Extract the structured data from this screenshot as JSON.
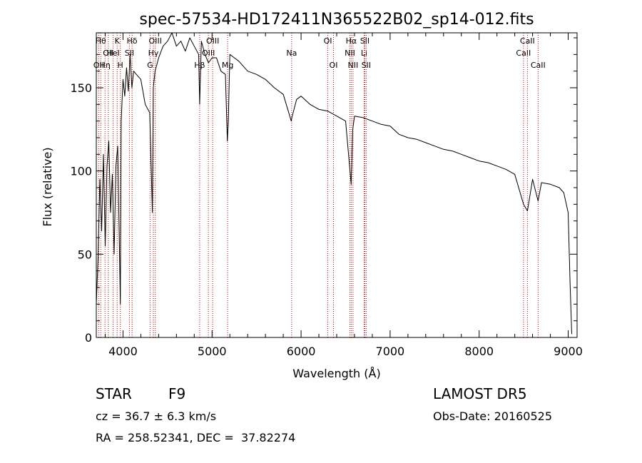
{
  "chart_data": {
    "type": "line",
    "title": "spec-57534-HD172411N365522B02_sp14-012.fits",
    "xlabel": "Wavelength (Å)",
    "ylabel": "Flux (relative)",
    "xlim": [
      3700,
      9100
    ],
    "ylim": [
      0,
      183
    ],
    "x_ticks": [
      4000,
      5000,
      6000,
      7000,
      8000,
      9000
    ],
    "y_ticks": [
      0,
      50,
      100,
      150
    ],
    "x_tick_labels": [
      "4000",
      "5000",
      "6000",
      "7000",
      "8000",
      "9000"
    ],
    "y_tick_labels": [
      "0",
      "50",
      "100",
      "150"
    ],
    "grid": false,
    "series": [
      {
        "x": [
          3700,
          3720,
          3740,
          3760,
          3780,
          3800,
          3820,
          3840,
          3860,
          3880,
          3900,
          3920,
          3940,
          3960,
          3970,
          3980,
          4000,
          4020,
          4040,
          4060,
          4080,
          4100,
          4120,
          4150,
          4200,
          4250,
          4300,
          4330,
          4340,
          4360,
          4400,
          4450,
          4500,
          4550,
          4600,
          4650,
          4700,
          4750,
          4800,
          4850,
          4861,
          4880,
          4920,
          4960,
          5000,
          5050,
          5100,
          5150,
          5172,
          5183,
          5200,
          5250,
          5300,
          5400,
          5500,
          5600,
          5700,
          5800,
          5890,
          5896,
          5950,
          6000,
          6100,
          6200,
          6300,
          6400,
          6500,
          6563,
          6580,
          6600,
          6700,
          6800,
          6900,
          7000,
          7100,
          7200,
          7300,
          7400,
          7500,
          7600,
          7700,
          7800,
          7900,
          8000,
          8100,
          8200,
          8300,
          8400,
          8498,
          8542,
          8600,
          8662,
          8700,
          8800,
          8900,
          8950,
          9000,
          9020,
          9040
        ],
        "values": [
          20,
          48,
          95,
          64,
          110,
          55,
          103,
          118,
          75,
          98,
          50,
          103,
          115,
          52,
          20,
          130,
          155,
          145,
          162,
          148,
          170,
          150,
          160,
          158,
          155,
          140,
          135,
          75,
          150,
          160,
          168,
          175,
          178,
          183,
          175,
          178,
          172,
          180,
          175,
          170,
          140,
          178,
          170,
          165,
          168,
          168,
          160,
          158,
          118,
          130,
          170,
          168,
          166,
          160,
          158,
          155,
          150,
          146,
          130,
          132,
          143,
          145,
          140,
          137,
          136,
          133,
          130,
          92,
          125,
          133,
          132,
          130,
          128,
          127,
          122,
          120,
          119,
          117,
          115,
          113,
          112,
          110,
          108,
          106,
          105,
          103,
          101,
          98,
          80,
          76,
          95,
          82,
          93,
          92,
          90,
          87,
          75,
          35,
          2
        ]
      }
    ],
    "lines": [
      {
        "x": 3727,
        "label": "OII",
        "row": 3
      },
      {
        "x": 3750,
        "label": "Hθ",
        "row": 1
      },
      {
        "x": 3798,
        "label": "Hη",
        "row": 3
      },
      {
        "x": 3835,
        "label": "OII",
        "row": 2
      },
      {
        "x": 3889,
        "label": "HeI",
        "row": 2
      },
      {
        "x": 3934,
        "label": "K",
        "row": 1
      },
      {
        "x": 3970,
        "label": "H",
        "row": 3
      },
      {
        "x": 4072,
        "label": "SII",
        "row": 2
      },
      {
        "x": 4102,
        "label": "Hδ",
        "row": 1
      },
      {
        "x": 4304,
        "label": "G",
        "row": 3
      },
      {
        "x": 4341,
        "label": "Hγ",
        "row": 2
      },
      {
        "x": 4363,
        "label": "OIII",
        "row": 1
      },
      {
        "x": 4861,
        "label": "Hβ",
        "row": 3
      },
      {
        "x": 4959,
        "label": "OIII",
        "row": 2
      },
      {
        "x": 5007,
        "label": "OIII",
        "row": 1
      },
      {
        "x": 5175,
        "label": "Mg",
        "row": 3
      },
      {
        "x": 5894,
        "label": "Na",
        "row": 2
      },
      {
        "x": 6300,
        "label": "OI",
        "row": 1
      },
      {
        "x": 6364,
        "label": "OI",
        "row": 3
      },
      {
        "x": 6548,
        "label": "NII",
        "row": 2
      },
      {
        "x": 6563,
        "label": "Hα",
        "row": 1
      },
      {
        "x": 6583,
        "label": "NII",
        "row": 3
      },
      {
        "x": 6708,
        "label": "Li",
        "row": 2
      },
      {
        "x": 6716,
        "label": "SII",
        "row": 1
      },
      {
        "x": 6731,
        "label": "SII",
        "row": 3
      },
      {
        "x": 8498,
        "label": "CaII",
        "row": 2
      },
      {
        "x": 8542,
        "label": "CaII",
        "row": 1
      },
      {
        "x": 8662,
        "label": "CaII",
        "row": 3
      }
    ],
    "line_color": "#000000",
    "marker_color": "#c00000"
  },
  "footer": {
    "object_class": "STAR",
    "subclass": "F9",
    "survey": "LAMOST DR5",
    "cz": "cz = 36.7 ± 6.3 km/s",
    "obs_date": "Obs-Date: 20160525",
    "coords": "RA = 258.52341, DEC =  37.82274"
  }
}
